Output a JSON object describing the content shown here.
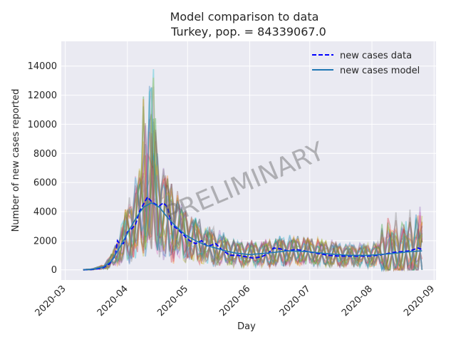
{
  "chart_data": {
    "type": "line",
    "title": "Model comparison to data",
    "subtitle": "Turkey, pop. = 84339067.0",
    "xlabel": "Day",
    "ylabel": "Number of new cases reported",
    "watermark": "PRELIMINARY",
    "xlim": [
      "2020-02-28",
      "2020-09-02"
    ],
    "ylim": [
      -700,
      15700
    ],
    "x_ticks": [
      "2020-03",
      "2020-04",
      "2020-05",
      "2020-06",
      "2020-07",
      "2020-08",
      "2020-09"
    ],
    "y_ticks": [
      0,
      2000,
      4000,
      6000,
      8000,
      10000,
      12000,
      14000
    ],
    "y_tick_labels": [
      "0",
      "2000",
      "4000",
      "6000",
      "8000",
      "10000",
      "12000",
      "14000"
    ],
    "grid": true,
    "legend_position": "top-right",
    "series": [
      {
        "name": "new cases data",
        "style": "dashed",
        "color": "#0000ff",
        "points": [
          [
            "2020-03-10",
            0
          ],
          [
            "2020-03-14",
            20
          ],
          [
            "2020-03-17",
            60
          ],
          [
            "2020-03-20",
            150
          ],
          [
            "2020-03-23",
            400
          ],
          [
            "2020-03-26",
            1000
          ],
          [
            "2020-03-27",
            2000
          ],
          [
            "2020-03-28",
            1800
          ],
          [
            "2020-03-30",
            1800
          ],
          [
            "2020-04-01",
            2600
          ],
          [
            "2020-04-03",
            2800
          ],
          [
            "2020-04-05",
            3100
          ],
          [
            "2020-04-07",
            4000
          ],
          [
            "2020-04-09",
            4500
          ],
          [
            "2020-04-11",
            5000
          ],
          [
            "2020-04-13",
            4700
          ],
          [
            "2020-04-15",
            4500
          ],
          [
            "2020-04-17",
            4400
          ],
          [
            "2020-04-19",
            4600
          ],
          [
            "2020-04-21",
            4300
          ],
          [
            "2020-04-23",
            3100
          ],
          [
            "2020-04-26",
            2800
          ],
          [
            "2020-04-29",
            2400
          ],
          [
            "2020-05-02",
            2000
          ],
          [
            "2020-05-05",
            1800
          ],
          [
            "2020-05-08",
            2000
          ],
          [
            "2020-05-11",
            1600
          ],
          [
            "2020-05-15",
            1800
          ],
          [
            "2020-05-18",
            1400
          ],
          [
            "2020-05-22",
            1000
          ],
          [
            "2020-05-26",
            1000
          ],
          [
            "2020-05-30",
            900
          ],
          [
            "2020-06-03",
            800
          ],
          [
            "2020-06-07",
            900
          ],
          [
            "2020-06-10",
            1100
          ],
          [
            "2020-06-13",
            1500
          ],
          [
            "2020-06-16",
            1450
          ],
          [
            "2020-06-20",
            1300
          ],
          [
            "2020-06-24",
            1400
          ],
          [
            "2020-06-28",
            1300
          ],
          [
            "2020-07-02",
            1200
          ],
          [
            "2020-07-06",
            1100
          ],
          [
            "2020-07-10",
            1000
          ],
          [
            "2020-07-15",
            950
          ],
          [
            "2020-07-20",
            950
          ],
          [
            "2020-07-25",
            950
          ],
          [
            "2020-07-30",
            950
          ],
          [
            "2020-08-04",
            1000
          ],
          [
            "2020-08-08",
            1100
          ],
          [
            "2020-08-12",
            1200
          ],
          [
            "2020-08-16",
            1250
          ],
          [
            "2020-08-20",
            1300
          ],
          [
            "2020-08-24",
            1500
          ],
          [
            "2020-08-26",
            1400
          ]
        ]
      },
      {
        "name": "new cases model",
        "style": "solid",
        "color": "#1f77b4",
        "points": [
          [
            "2020-03-10",
            0
          ],
          [
            "2020-03-15",
            50
          ],
          [
            "2020-03-20",
            200
          ],
          [
            "2020-03-24",
            600
          ],
          [
            "2020-03-28",
            1500
          ],
          [
            "2020-04-01",
            2500
          ],
          [
            "2020-04-05",
            3500
          ],
          [
            "2020-04-09",
            4300
          ],
          [
            "2020-04-13",
            4600
          ],
          [
            "2020-04-17",
            4300
          ],
          [
            "2020-04-21",
            3600
          ],
          [
            "2020-04-25",
            3000
          ],
          [
            "2020-04-30",
            2400
          ],
          [
            "2020-05-05",
            2000
          ],
          [
            "2020-05-10",
            1700
          ],
          [
            "2020-05-15",
            1500
          ],
          [
            "2020-05-20",
            1300
          ],
          [
            "2020-05-25",
            1150
          ],
          [
            "2020-06-01",
            1050
          ],
          [
            "2020-06-10",
            1150
          ],
          [
            "2020-06-20",
            1300
          ],
          [
            "2020-06-30",
            1250
          ],
          [
            "2020-07-10",
            1100
          ],
          [
            "2020-07-20",
            1000
          ],
          [
            "2020-07-30",
            1000
          ],
          [
            "2020-08-10",
            1100
          ],
          [
            "2020-08-20",
            1250
          ],
          [
            "2020-08-26",
            1300
          ]
        ]
      }
    ],
    "ensemble": {
      "colors": [
        "#1f77b4",
        "#ff7f0e",
        "#2ca02c",
        "#d62728",
        "#9467bd",
        "#8c564b",
        "#e377c2",
        "#7f7f7f",
        "#bcbd22",
        "#17becf"
      ],
      "opacity": 0.35
    }
  }
}
